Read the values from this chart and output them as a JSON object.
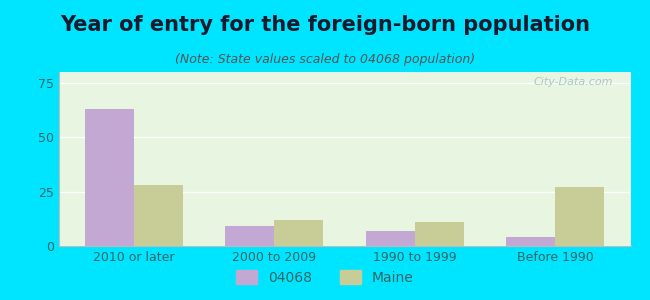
{
  "title": "Year of entry for the foreign-born population",
  "subtitle": "(Note: State values scaled to 04068 population)",
  "categories": [
    "2010 or later",
    "2000 to 2009",
    "1990 to 1999",
    "Before 1990"
  ],
  "values_04068": [
    63,
    9,
    7,
    4
  ],
  "values_maine": [
    28,
    12,
    11,
    27
  ],
  "color_04068": "#c4a8d4",
  "color_maine": "#c8cc96",
  "background_outer": "#00e5ff",
  "background_inner_top": "#e8f5e0",
  "background_inner_bottom": "#f5faf0",
  "ylim": [
    0,
    80
  ],
  "yticks": [
    0,
    25,
    50,
    75
  ],
  "bar_width": 0.35,
  "legend_label_04068": "04068",
  "legend_label_maine": "Maine",
  "title_fontsize": 15,
  "subtitle_fontsize": 9,
  "tick_fontsize": 9,
  "tick_color": "#336666",
  "watermark_color": "#a0bfc8"
}
